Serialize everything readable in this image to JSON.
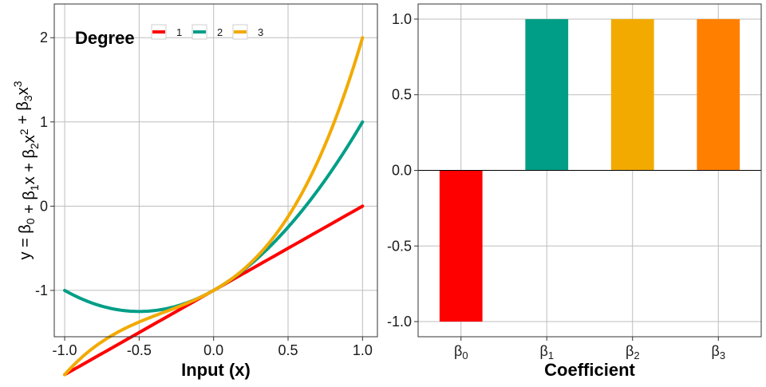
{
  "chart_data": [
    {
      "type": "line",
      "xlabel": "Input (x)",
      "ylabel": {
        "prefix": "y = ",
        "terms": [
          {
            "base": "β",
            "sub": "0",
            "var": "",
            "pow": ""
          },
          {
            "base": "β",
            "sub": "1",
            "var": "x",
            "pow": ""
          },
          {
            "base": "β",
            "sub": "2",
            "var": "x",
            "pow": "2"
          },
          {
            "base": "β",
            "sub": "3",
            "var": "x",
            "pow": "3"
          }
        ]
      },
      "xlim": [
        -1.07,
        1.1
      ],
      "ylim": [
        -1.55,
        2.4
      ],
      "x_ticks": [
        -1.0,
        -0.5,
        0.0,
        0.5,
        1.0
      ],
      "x_tick_labels": [
        "-1.0",
        "-0.5",
        "0.0",
        "0.5",
        "1.0"
      ],
      "y_ticks": [
        -1,
        0,
        1,
        2
      ],
      "y_tick_labels": [
        "-1",
        "0",
        "1",
        "2"
      ],
      "grid": true,
      "legend": {
        "title": "Degree",
        "position": "top-left"
      },
      "coefficients": [
        -1,
        1,
        1,
        1
      ],
      "series": [
        {
          "name": "1",
          "degree": 1,
          "color": "#ff0000"
        },
        {
          "name": "2",
          "degree": 2,
          "color": "#009e87"
        },
        {
          "name": "3",
          "degree": 3,
          "color": "#f2aa00"
        }
      ],
      "x_domain": [
        -1,
        1
      ]
    },
    {
      "type": "bar",
      "xlabel": "Coefficient",
      "ylabel": "",
      "categories": [
        {
          "base": "β",
          "sub": "0"
        },
        {
          "base": "β",
          "sub": "1"
        },
        {
          "base": "β",
          "sub": "2"
        },
        {
          "base": "β",
          "sub": "3"
        }
      ],
      "values": [
        -1.0,
        1.0,
        1.0,
        1.0
      ],
      "colors": [
        "#ff0000",
        "#009e87",
        "#f2aa00",
        "#ff8000"
      ],
      "ylim": [
        -1.1,
        1.1
      ],
      "y_ticks": [
        -1.0,
        -0.5,
        0.0,
        0.5,
        1.0
      ],
      "y_tick_labels": [
        "-1.0",
        "-0.5",
        "0.0",
        "0.5",
        "1.0"
      ],
      "grid": true
    }
  ]
}
